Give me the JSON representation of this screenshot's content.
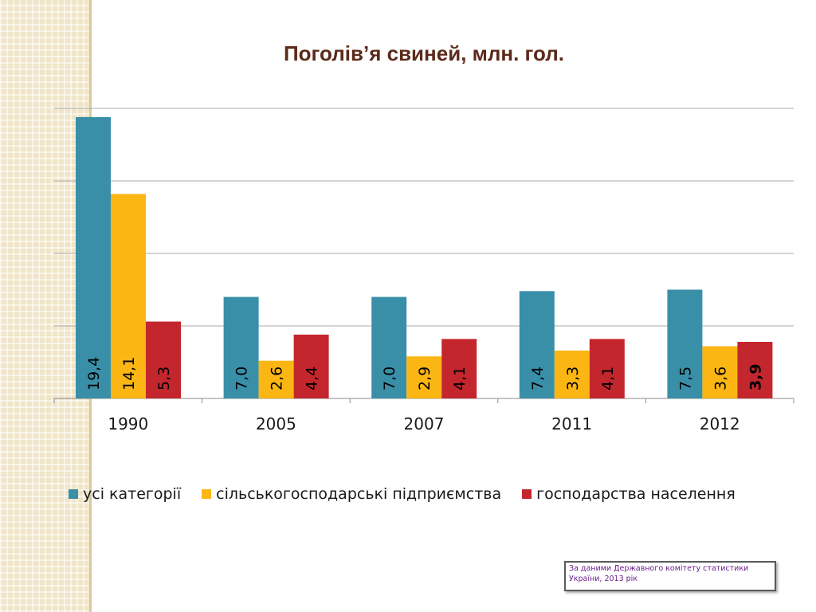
{
  "title": "Поголів’я свиней, млн. гол.",
  "colors": {
    "series1": "#3a8fa8",
    "series2": "#fbb614",
    "series3": "#c4262e",
    "title": "#5b2a1a",
    "source_text": "#6a1e8a"
  },
  "chart_data": {
    "type": "bar",
    "title": "Поголів’я свиней, млн. гол.",
    "categories": [
      "1990",
      "2005",
      "2007",
      "2011",
      "2012"
    ],
    "series": [
      {
        "name": "усі категорії",
        "values": [
          19.4,
          7.0,
          7.0,
          7.4,
          7.5
        ],
        "labels": [
          "19,4",
          "7,0",
          "7,0",
          "7,4",
          "7,5"
        ]
      },
      {
        "name": "сільськогосподарські підприємства",
        "values": [
          14.1,
          2.6,
          2.9,
          3.3,
          3.6
        ],
        "labels": [
          "14,1",
          "2,6",
          "2,9",
          "3,3",
          "3,6"
        ]
      },
      {
        "name": "господарства населення",
        "values": [
          5.3,
          4.4,
          4.1,
          4.1,
          3.9
        ],
        "labels": [
          "5,3",
          "4,4",
          "4,1",
          "4,1",
          "3,9"
        ]
      }
    ],
    "ylim": [
      0,
      20
    ],
    "grid": true,
    "legend_position": "bottom"
  },
  "source_note": {
    "line1": "За даними Державного комітету статистики",
    "line2": "України, 2013 рік"
  }
}
